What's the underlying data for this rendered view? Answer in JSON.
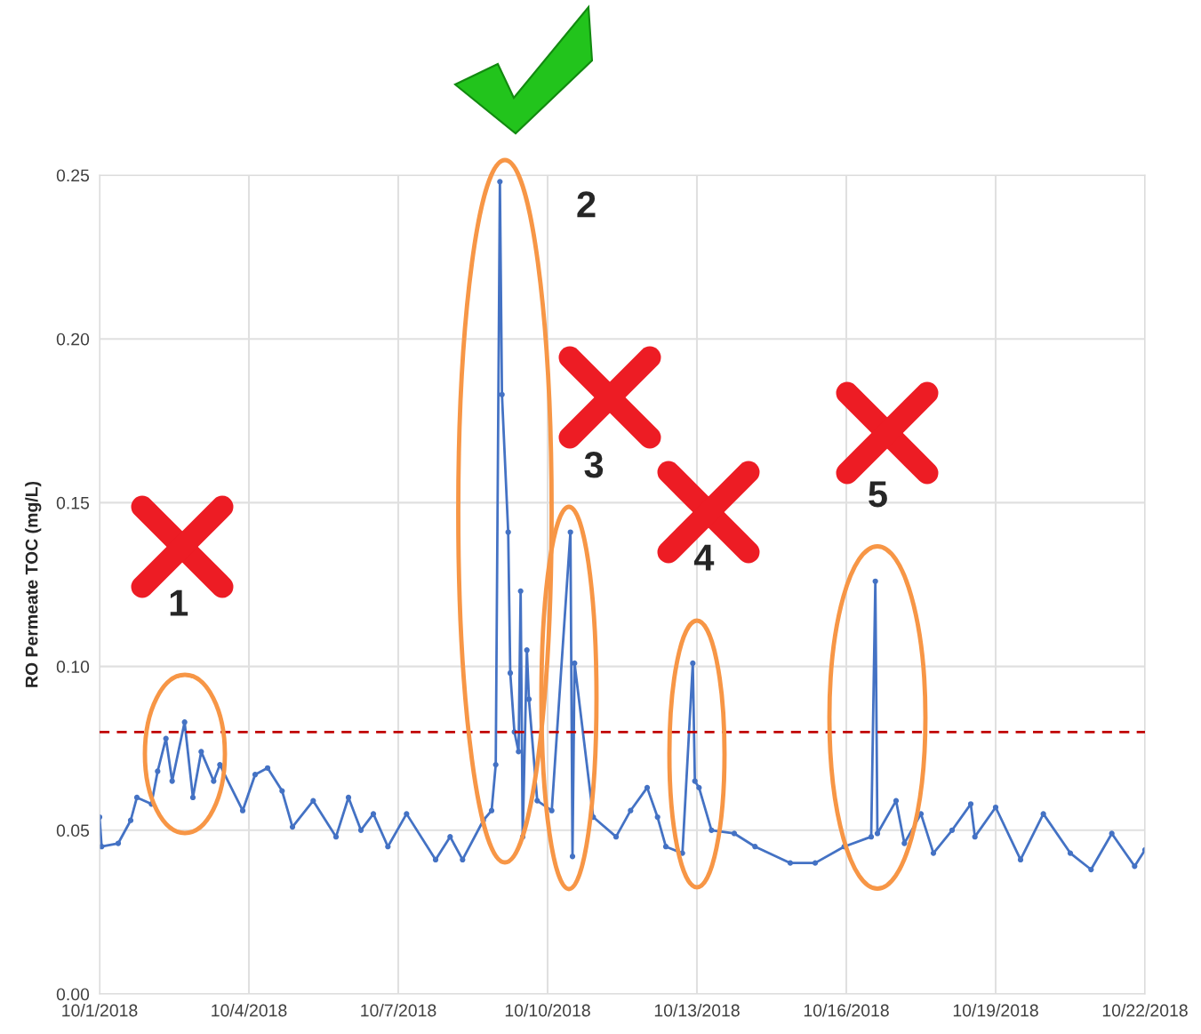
{
  "chart_data": {
    "type": "line",
    "ylabel": "RO Permeate TOC (mg/L)",
    "xlim": [
      "2018-10-01",
      "2018-10-22"
    ],
    "xticks": [
      {
        "value": "2018-10-01",
        "label": "10/1/2018"
      },
      {
        "value": "2018-10-04",
        "label": "10/4/2018"
      },
      {
        "value": "2018-10-07",
        "label": "10/7/2018"
      },
      {
        "value": "2018-10-10",
        "label": "10/10/2018"
      },
      {
        "value": "2018-10-13",
        "label": "10/13/2018"
      },
      {
        "value": "2018-10-16",
        "label": "10/16/2018"
      },
      {
        "value": "2018-10-19",
        "label": "10/19/2018"
      },
      {
        "value": "2018-10-22",
        "label": "10/22/2018"
      }
    ],
    "ylim": [
      0,
      0.25
    ],
    "yticks": [
      {
        "value": 0,
        "label": "0.00"
      },
      {
        "value": 0.05,
        "label": "0.05"
      },
      {
        "value": 0.1,
        "label": "0.10"
      },
      {
        "value": 0.15,
        "label": "0.15"
      },
      {
        "value": 0.2,
        "label": "0.20"
      },
      {
        "value": 0.25,
        "label": "0.25"
      }
    ],
    "grid": true,
    "marker": "circle",
    "line_style": "solid",
    "legend": false,
    "ref_lines": [
      {
        "axis": "y",
        "value": 0.08,
        "color": "#c00000",
        "line_style": "dashed"
      }
    ],
    "annotations": [
      {
        "text": "1",
        "x": "2018-10-02T17:00",
        "y": 0.083
      },
      {
        "text": "2",
        "x": "2018-10-09T01:00",
        "y": 0.248
      },
      {
        "text": "3",
        "x": "2018-10-10T11:00",
        "y": 0.141
      },
      {
        "text": "4",
        "x": "2018-10-12T22:00",
        "y": 0.101
      },
      {
        "text": "5",
        "x": "2018-10-16T14:00",
        "y": 0.126
      }
    ],
    "series": [
      {
        "color": "#4472c4",
        "x": [
          "2018-10-01T00:00",
          "2018-10-01T01:00",
          "2018-10-01T09:00",
          "2018-10-01T15:00",
          "2018-10-01T18:00",
          "2018-10-02T01:00",
          "2018-10-02T04:00",
          "2018-10-02T08:00",
          "2018-10-02T11:00",
          "2018-10-02T17:00",
          "2018-10-02T21:00",
          "2018-10-03T01:00",
          "2018-10-03T07:00",
          "2018-10-03T10:00",
          "2018-10-03T21:00",
          "2018-10-04T03:00",
          "2018-10-04T09:00",
          "2018-10-04T16:00",
          "2018-10-04T21:00",
          "2018-10-05T07:00",
          "2018-10-05T18:00",
          "2018-10-06T00:00",
          "2018-10-06T06:00",
          "2018-10-06T12:00",
          "2018-10-06T19:00",
          "2018-10-07T04:00",
          "2018-10-07T18:00",
          "2018-10-08T01:00",
          "2018-10-08T07:00",
          "2018-10-08T17:00",
          "2018-10-08T21:00",
          "2018-10-08T23:00",
          "2018-10-09T01:00",
          "2018-10-09T02:00",
          "2018-10-09T05:00",
          "2018-10-09T06:00",
          "2018-10-09T08:00",
          "2018-10-09T10:00",
          "2018-10-09T11:00",
          "2018-10-09T12:00",
          "2018-10-09T14:00",
          "2018-10-09T15:00",
          "2018-10-09T19:00",
          "2018-10-10T02:00",
          "2018-10-10T11:00",
          "2018-10-10T12:00",
          "2018-10-10T13:00",
          "2018-10-10T22:00",
          "2018-10-11T09:00",
          "2018-10-11T16:00",
          "2018-10-12T00:00",
          "2018-10-12T05:00",
          "2018-10-12T09:00",
          "2018-10-12T17:00",
          "2018-10-12T22:00",
          "2018-10-12T23:00",
          "2018-10-13T01:00",
          "2018-10-13T07:00",
          "2018-10-13T18:00",
          "2018-10-14T04:00",
          "2018-10-14T21:00",
          "2018-10-15T09:00",
          "2018-10-15T23:00",
          "2018-10-16T12:00",
          "2018-10-16T14:00",
          "2018-10-16T15:00",
          "2018-10-17T00:00",
          "2018-10-17T04:00",
          "2018-10-17T12:00",
          "2018-10-17T18:00",
          "2018-10-18T03:00",
          "2018-10-18T12:00",
          "2018-10-18T14:00",
          "2018-10-19T00:00",
          "2018-10-19T12:00",
          "2018-10-19T23:00",
          "2018-10-20T12:00",
          "2018-10-20T22:00",
          "2018-10-21T08:00",
          "2018-10-21T19:00",
          "2018-10-22T00:00"
        ],
        "values": [
          0.054,
          0.045,
          0.046,
          0.053,
          0.06,
          0.058,
          0.068,
          0.078,
          0.065,
          0.083,
          0.06,
          0.074,
          0.065,
          0.07,
          0.056,
          0.067,
          0.069,
          0.062,
          0.051,
          0.059,
          0.048,
          0.06,
          0.05,
          0.055,
          0.045,
          0.055,
          0.041,
          0.048,
          0.041,
          0.053,
          0.056,
          0.07,
          0.248,
          0.183,
          0.141,
          0.098,
          0.08,
          0.074,
          0.123,
          0.048,
          0.105,
          0.09,
          0.059,
          0.056,
          0.141,
          0.042,
          0.101,
          0.054,
          0.048,
          0.056,
          0.063,
          0.054,
          0.045,
          0.043,
          0.101,
          0.065,
          0.063,
          0.05,
          0.049,
          0.045,
          0.04,
          0.04,
          0.045,
          0.048,
          0.126,
          0.049,
          0.059,
          0.046,
          0.055,
          0.043,
          0.05,
          0.058,
          0.048,
          0.057,
          0.041,
          0.055,
          0.043,
          0.038,
          0.049,
          0.039,
          0.044
        ]
      }
    ]
  }
}
